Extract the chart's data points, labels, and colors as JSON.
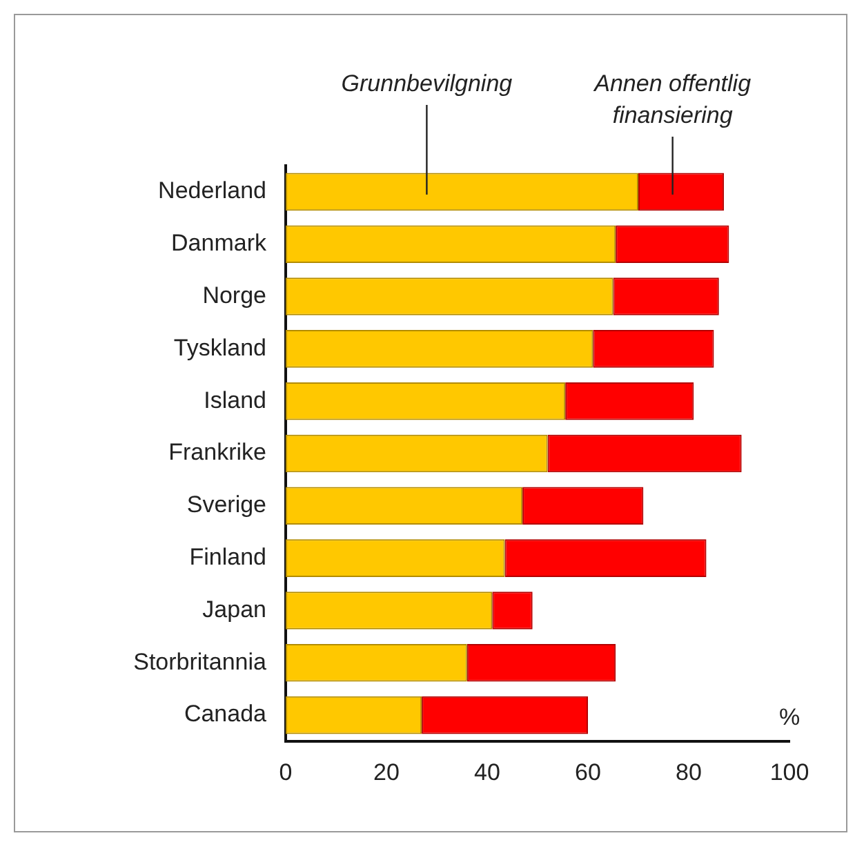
{
  "chart_data": {
    "type": "bar",
    "orientation": "horizontal",
    "stacked": true,
    "xlabel": "%",
    "categories": [
      "Nederland",
      "Danmark",
      "Norge",
      "Tyskland",
      "Island",
      "Frankrike",
      "Sverige",
      "Finland",
      "Japan",
      "Storbritannia",
      "Canada"
    ],
    "series": [
      {
        "name": "Grunnbevilgning",
        "color": "#ffc800",
        "values": [
          70,
          65.5,
          65,
          61,
          55.5,
          52,
          47,
          43.5,
          41,
          36,
          27
        ]
      },
      {
        "name": "Annen offentlig finansiering",
        "color": "#ff0000",
        "values": [
          17,
          22.5,
          21,
          24,
          25.5,
          38.5,
          24,
          40,
          8,
          29.5,
          33
        ]
      }
    ],
    "xlim": [
      0,
      100
    ],
    "xticks": [
      0,
      20,
      40,
      60,
      80,
      100
    ],
    "grid": false,
    "legend": false
  }
}
